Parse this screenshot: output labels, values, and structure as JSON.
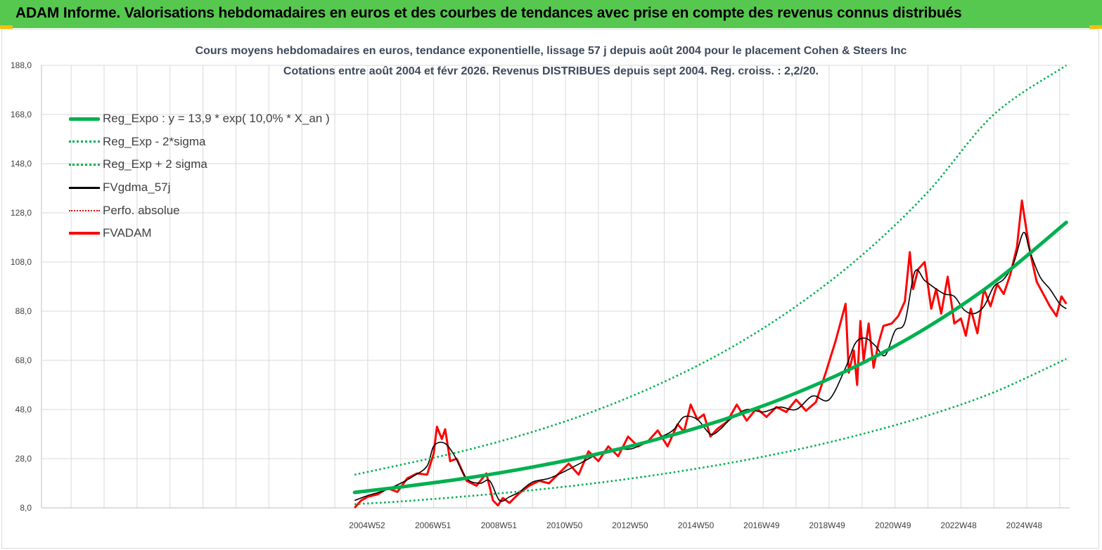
{
  "header": {
    "title": "ADAM Informe. Valorisations hebdomadaires en euros et des courbes de tendances avec prise en compte des revenus connus distribués"
  },
  "colors": {
    "banner": "#57c84f",
    "reg_expo": "#00b050",
    "fvgdma": "#000000",
    "fvadam": "#ff0000",
    "perfo": "#e00000",
    "grid": "#d9d9d9"
  },
  "chart_data": {
    "type": "line",
    "title": "Cours moyens hebdomadaires en euros, tendance exponentielle, lissage 57 j depuis août 2004 pour le placement Cohen & Steers Inc",
    "subtitle": "Cotations entre août 2004 et févr 2026. Revenus DISTRIBUES depuis sept 2004. Reg. croiss. : 2,2/20.",
    "xlabel": "",
    "ylabel": "",
    "ylim": [
      8,
      188
    ],
    "xlim": [
      1995.1,
      2026.3
    ],
    "grid": true,
    "legend_position": "top-left",
    "y_ticks": [
      "188,0",
      "168,0",
      "148,0",
      "128,0",
      "108,0",
      "88,0",
      "68,0",
      "48,0",
      "28,0",
      "8,0"
    ],
    "x_ticks": [
      {
        "label": "2004W52",
        "x": 2004.98
      },
      {
        "label": "2006W51",
        "x": 2006.98
      },
      {
        "label": "2008W51",
        "x": 2008.98
      },
      {
        "label": "2010W50",
        "x": 2010.97
      },
      {
        "label": "2012W50",
        "x": 2012.96
      },
      {
        "label": "2014W50",
        "x": 2014.96
      },
      {
        "label": "2016W49",
        "x": 2016.95
      },
      {
        "label": "2018W49",
        "x": 2018.94
      },
      {
        "label": "2020W49",
        "x": 2020.94
      },
      {
        "label": "2022W48",
        "x": 2022.93
      },
      {
        "label": "2024W48",
        "x": 2024.92
      }
    ],
    "legend": [
      "Reg_Expo : y = 13,9 * exp( 10,0% *  X_an )",
      "Reg_Exp - 2*sigma",
      "Reg_Exp + 2 sigma",
      "FVgdma_57j",
      "Perfo. absolue",
      "FVADAM"
    ],
    "series": [
      {
        "name": "Reg_Expo",
        "style": "solid-thick-green",
        "x": [
          2004.6,
          2006.0,
          2008.0,
          2010.0,
          2012.0,
          2014.0,
          2016.0,
          2018.0,
          2020.0,
          2022.0,
          2024.0,
          2026.2
        ],
        "values": [
          14.3,
          16.5,
          20.1,
          24.6,
          30.0,
          36.7,
          44.8,
          54.7,
          66.8,
          81.6,
          99.7,
          124.1
        ]
      },
      {
        "name": "Reg_Exp - 2*sigma",
        "style": "dotted-green",
        "x": [
          2004.6,
          2006.0,
          2008.0,
          2010.0,
          2012.0,
          2014.0,
          2016.0,
          2018.0,
          2020.0,
          2022.0,
          2024.0,
          2026.2
        ],
        "values": [
          9.5,
          10.6,
          12.7,
          15.2,
          18.2,
          21.9,
          26.3,
          31.6,
          38.0,
          45.6,
          55.0,
          68.6
        ]
      },
      {
        "name": "Reg_Exp + 2 sigma",
        "style": "dotted-green",
        "x": [
          2004.6,
          2006.0,
          2008.0,
          2010.0,
          2012.0,
          2014.0,
          2016.0,
          2018.0,
          2020.0,
          2022.0,
          2024.0,
          2026.2
        ],
        "values": [
          21.5,
          25.5,
          31.5,
          38.9,
          48.0,
          59.3,
          73.0,
          90.0,
          110.8,
          136.5,
          168.0,
          188.0
        ]
      },
      {
        "name": "FVgdma_57j",
        "style": "solid-black",
        "x": [
          2004.6,
          2005.0,
          2005.5,
          2006.0,
          2006.4,
          2006.8,
          2007.0,
          2007.3,
          2007.6,
          2008.0,
          2008.4,
          2008.7,
          2009.0,
          2009.3,
          2009.6,
          2010.0,
          2010.5,
          2011.0,
          2011.5,
          2012.0,
          2012.5,
          2013.0,
          2013.5,
          2014.0,
          2014.3,
          2014.6,
          2015.0,
          2015.4,
          2015.7,
          2016.0,
          2016.5,
          2017.0,
          2017.5,
          2018.0,
          2018.5,
          2019.0,
          2019.5,
          2019.8,
          2020.1,
          2020.4,
          2020.7,
          2021.0,
          2021.3,
          2021.6,
          2021.9,
          2022.2,
          2022.5,
          2022.8,
          2023.1,
          2023.4,
          2023.7,
          2024.0,
          2024.3,
          2024.6,
          2024.9,
          2025.1,
          2025.4,
          2025.7,
          2026.0,
          2026.2
        ],
        "values": [
          11.0,
          13.0,
          15.0,
          18.0,
          21.0,
          25.0,
          33.0,
          34.5,
          30.0,
          20.0,
          18.0,
          19.0,
          11.0,
          12.5,
          14.5,
          18.5,
          20.0,
          23.0,
          26.5,
          30.0,
          32.0,
          32.0,
          35.0,
          37.5,
          40.0,
          45.0,
          44.0,
          38.0,
          40.0,
          44.0,
          48.0,
          47.0,
          49.0,
          48.0,
          53.5,
          52.0,
          65.0,
          75.0,
          77.0,
          74.0,
          70.0,
          80.0,
          83.5,
          104.0,
          100.5,
          97.5,
          95.0,
          94.0,
          88.5,
          87.0,
          90.0,
          98.0,
          101.0,
          107.5,
          120.0,
          112.0,
          102.0,
          97.0,
          91.0,
          89.0
        ]
      },
      {
        "name": "FVADAM",
        "style": "solid-red",
        "x": [
          2004.6,
          2004.8,
          2005.0,
          2005.3,
          2005.6,
          2005.9,
          2006.2,
          2006.5,
          2006.8,
          2007.0,
          2007.1,
          2007.25,
          2007.35,
          2007.5,
          2007.7,
          2008.0,
          2008.3,
          2008.6,
          2008.8,
          2008.95,
          2009.1,
          2009.3,
          2009.6,
          2009.9,
          2010.2,
          2010.5,
          2010.8,
          2011.1,
          2011.4,
          2011.7,
          2012.0,
          2012.3,
          2012.6,
          2012.9,
          2013.2,
          2013.5,
          2013.8,
          2014.1,
          2014.4,
          2014.6,
          2014.8,
          2015.0,
          2015.2,
          2015.4,
          2015.6,
          2015.9,
          2016.2,
          2016.5,
          2016.8,
          2017.1,
          2017.4,
          2017.7,
          2018.0,
          2018.3,
          2018.6,
          2018.9,
          2019.2,
          2019.5,
          2019.6,
          2019.75,
          2019.85,
          2019.95,
          2020.05,
          2020.2,
          2020.35,
          2020.5,
          2020.65,
          2020.9,
          2021.1,
          2021.3,
          2021.45,
          2021.55,
          2021.7,
          2021.9,
          2022.1,
          2022.25,
          2022.4,
          2022.6,
          2022.8,
          2023.0,
          2023.15,
          2023.3,
          2023.5,
          2023.7,
          2023.9,
          2024.1,
          2024.3,
          2024.5,
          2024.7,
          2024.85,
          2025.0,
          2025.1,
          2025.3,
          2025.5,
          2025.7,
          2025.9,
          2026.05,
          2026.2
        ],
        "values": [
          8.0,
          11.0,
          12.5,
          13.5,
          16.0,
          14.5,
          20.0,
          22.0,
          21.5,
          30.0,
          41.0,
          36.0,
          40.0,
          27.0,
          28.0,
          19.0,
          17.0,
          22.0,
          11.0,
          9.0,
          12.0,
          10.0,
          14.0,
          17.0,
          19.0,
          18.0,
          22.0,
          26.0,
          21.5,
          31.0,
          27.0,
          33.0,
          29.0,
          37.0,
          33.0,
          35.0,
          39.5,
          33.0,
          42.0,
          39.0,
          50.0,
          44.0,
          46.0,
          37.0,
          40.0,
          43.0,
          50.0,
          43.5,
          48.5,
          45.0,
          49.0,
          47.0,
          52.0,
          47.5,
          51.0,
          63.0,
          76.0,
          91.0,
          63.0,
          72.0,
          58.0,
          84.0,
          68.0,
          83.0,
          65.0,
          75.0,
          82.0,
          83.0,
          86.0,
          92.0,
          112.0,
          97.0,
          105.0,
          108.0,
          89.0,
          97.0,
          87.0,
          102.0,
          83.0,
          85.0,
          78.0,
          89.0,
          79.0,
          97.0,
          90.0,
          99.0,
          95.0,
          103.0,
          114.0,
          133.0,
          120.0,
          112.0,
          100.0,
          95.0,
          90.0,
          86.0,
          94.0,
          91.0
        ]
      }
    ]
  }
}
